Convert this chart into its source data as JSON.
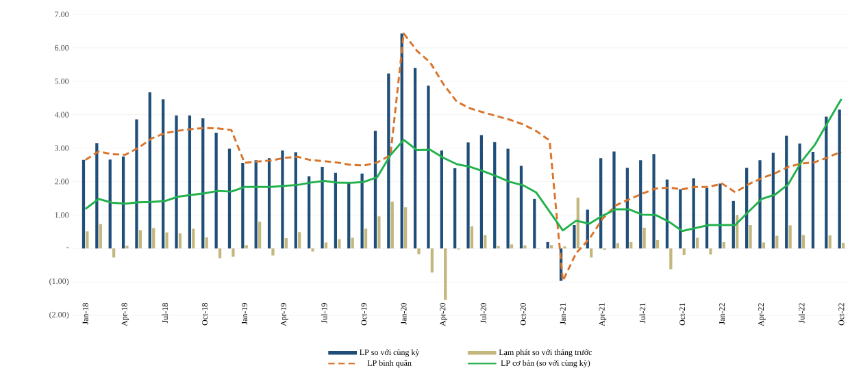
{
  "chart_data": {
    "type": "bar",
    "categories": [
      "Jan-18",
      null,
      null,
      "Apr-18",
      null,
      null,
      "Jul-18",
      null,
      null,
      "Oct-18",
      null,
      null,
      "Jan-19",
      null,
      null,
      "Apr-19",
      null,
      null,
      "Jul-19",
      null,
      null,
      "Oct-19",
      null,
      null,
      "Jan-20",
      null,
      null,
      "Apr-20",
      null,
      null,
      "Jul-20",
      null,
      null,
      "Oct-20",
      null,
      null,
      "Jan-21",
      null,
      null,
      "Apr-21",
      null,
      null,
      "Jul-21",
      null,
      null,
      "Oct-21",
      null,
      null,
      "Jan-22",
      null,
      null,
      "Apr-22",
      null,
      null,
      "Jul-22",
      null,
      null,
      "Oct-22"
    ],
    "series": [
      {
        "name": "LP so với cùng kỳ",
        "type": "bar",
        "color": "#1f4e79",
        "values": [
          2.65,
          3.15,
          2.66,
          2.75,
          3.86,
          4.67,
          4.46,
          3.98,
          3.98,
          3.89,
          3.46,
          2.98,
          2.56,
          2.64,
          2.7,
          2.93,
          2.88,
          2.16,
          2.44,
          2.26,
          1.98,
          2.24,
          3.52,
          5.23,
          6.43,
          5.4,
          4.87,
          2.93,
          2.4,
          3.17,
          3.39,
          3.18,
          2.98,
          2.47,
          1.48,
          0.19,
          -0.97,
          0.7,
          1.16,
          2.7,
          2.9,
          2.41,
          2.64,
          2.82,
          2.06,
          1.77,
          2.1,
          1.81,
          1.94,
          1.42,
          2.41,
          2.64,
          2.86,
          3.37,
          3.14,
          2.89,
          3.94,
          4.15
        ]
      },
      {
        "name": "Lạm phát so với tháng trước",
        "type": "bar",
        "color": "#c4b77e",
        "values": [
          0.51,
          0.73,
          -0.27,
          0.08,
          0.55,
          0.61,
          0.48,
          0.45,
          0.59,
          0.33,
          -0.29,
          -0.25,
          0.1,
          0.8,
          -0.21,
          0.31,
          0.49,
          -0.09,
          0.18,
          0.28,
          0.32,
          0.59,
          0.96,
          1.4,
          1.23,
          -0.17,
          -0.72,
          -1.54,
          -0.03,
          0.66,
          0.4,
          0.07,
          0.12,
          0.09,
          -0.01,
          0.1,
          0.06,
          1.52,
          -0.27,
          -0.04,
          0.16,
          0.19,
          0.62,
          0.25,
          -0.62,
          -0.2,
          0.32,
          -0.18,
          0.19,
          1.0,
          0.7,
          0.18,
          0.38,
          0.69,
          0.4,
          null,
          0.39,
          0.17
        ]
      },
      {
        "name": "LP bình quân",
        "type": "line",
        "line_style": "dashed",
        "color": "#d9742b",
        "values": [
          2.65,
          2.9,
          2.82,
          2.8,
          3.01,
          3.29,
          3.45,
          3.52,
          3.57,
          3.6,
          3.59,
          3.54,
          2.56,
          2.6,
          2.63,
          2.71,
          2.74,
          2.64,
          2.61,
          2.57,
          2.5,
          2.48,
          2.57,
          2.79,
          6.43,
          5.91,
          5.56,
          4.91,
          4.39,
          4.19,
          4.07,
          3.96,
          3.85,
          3.71,
          3.51,
          3.23,
          -0.97,
          -0.14,
          0.29,
          0.89,
          1.29,
          1.47,
          1.64,
          1.79,
          1.82,
          1.77,
          1.84,
          1.84,
          1.94,
          1.68,
          1.92,
          2.1,
          2.25,
          2.44,
          2.54,
          2.58,
          2.73,
          2.89
        ]
      },
      {
        "name": "LP cơ bản (so với cùng kỳ)",
        "type": "line",
        "line_style": "solid",
        "color": "#22b14c",
        "values": [
          1.18,
          1.48,
          1.37,
          1.34,
          1.38,
          1.39,
          1.42,
          1.55,
          1.6,
          1.65,
          1.72,
          1.7,
          1.84,
          1.84,
          1.84,
          1.87,
          1.9,
          1.97,
          2.02,
          1.97,
          1.96,
          1.99,
          2.13,
          2.79,
          3.25,
          2.94,
          2.95,
          2.71,
          2.52,
          2.44,
          2.31,
          2.16,
          1.99,
          1.89,
          1.67,
          1.1,
          0.54,
          0.83,
          0.74,
          0.98,
          1.17,
          1.17,
          1.01,
          1.0,
          0.8,
          0.52,
          0.61,
          0.7,
          0.7,
          0.7,
          1.1,
          1.48,
          1.61,
          1.92,
          2.6,
          3.1,
          3.79,
          4.47
        ]
      }
    ],
    "ylim": [
      -2,
      7
    ],
    "yticks": [
      {
        "value": -2,
        "label": "(2.00)"
      },
      {
        "value": -1,
        "label": "(1.00)"
      },
      {
        "value": 0,
        "label": "-"
      },
      {
        "value": 1,
        "label": "1.00"
      },
      {
        "value": 2,
        "label": "2.00"
      },
      {
        "value": 3,
        "label": "3.00"
      },
      {
        "value": 4,
        "label": "4.00"
      },
      {
        "value": 5,
        "label": "5.00"
      },
      {
        "value": 6,
        "label": "6.00"
      },
      {
        "value": 7,
        "label": "7.00"
      }
    ],
    "grid": "y",
    "legend": "bottom",
    "marker": "none"
  }
}
